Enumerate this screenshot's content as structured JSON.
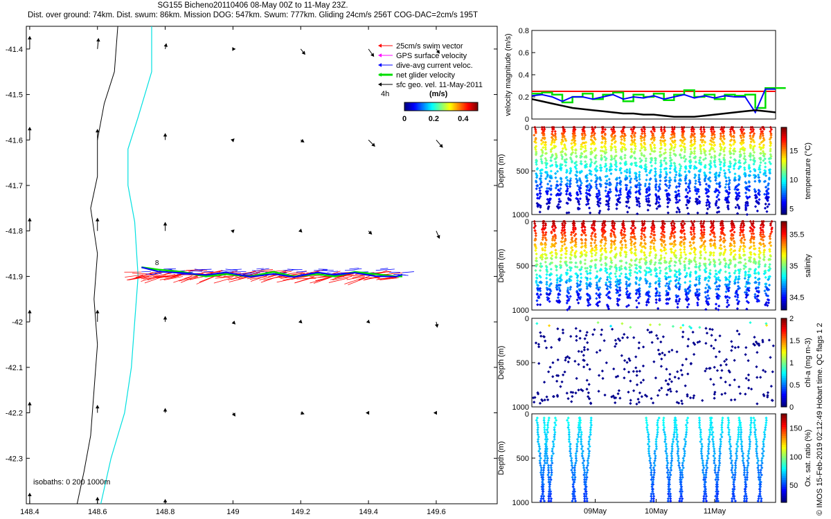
{
  "header": {
    "line1": "SG155 Bicheno20110406 08-May 00Z to 11-May 23Z.",
    "line2": "Dist. over ground: 74km. Dist. swum: 86km. Mission DOG: 547km. Swum: 777km. Gliding 24cm/s 256T COG-DAC=2cm/s 195T"
  },
  "credit": "© IMOS 15-Feb-2019 02:12:49 Hobart time. QC flags 1  2",
  "chart_data": [
    {
      "type": "map",
      "x_ticks": [
        "148.4",
        "148.6",
        "148.8",
        "149",
        "149.2",
        "149.4",
        "149.6"
      ],
      "y_ticks": [
        "-41.4",
        "-41.5",
        "-41.6",
        "-41.7",
        "-41.8",
        "-41.9",
        "-42",
        "-42.1",
        "-42.2",
        "-42.3"
      ],
      "xlim": [
        148.39,
        149.78
      ],
      "ylim": [
        -42.4,
        -41.35
      ],
      "legend": [
        {
          "label": "25cm/s swim vector",
          "color": "#ff0000"
        },
        {
          "label": "GPS surface velocity",
          "color": "#ff00ff"
        },
        {
          "label": "dive-avg current veloc.",
          "color": "#0000ff"
        },
        {
          "label": "net glider velocity",
          "color": "#00dd00"
        },
        {
          "label": "sfc geo. vel. 11-May-2011",
          "color": "#000000"
        }
      ],
      "scale_label": "4h",
      "colorbar": {
        "label": "(m/s)",
        "ticks": [
          "0",
          "0.2",
          "0.4"
        ],
        "range": [
          0,
          0.5
        ]
      },
      "isobath_label": "isobaths: 0   200  1000m",
      "track_label": "8",
      "track": {
        "lon": [
          148.73,
          148.78,
          148.85,
          148.92,
          148.98,
          149.05,
          149.12,
          149.18,
          149.25,
          149.3,
          149.36,
          149.42,
          149.48,
          149.5
        ],
        "lat": [
          -41.88,
          -41.885,
          -41.89,
          -41.9,
          -41.895,
          -41.9,
          -41.89,
          -41.9,
          -41.895,
          -41.9,
          -41.89,
          -41.895,
          -41.9,
          -41.9
        ]
      },
      "currents": [
        {
          "lon": 148.4,
          "lat": -41.4,
          "u": 0.0,
          "v": 0.12
        },
        {
          "lon": 148.6,
          "lat": -41.4,
          "u": 0.01,
          "v": 0.1
        },
        {
          "lon": 148.8,
          "lat": -41.4,
          "u": 0.01,
          "v": 0.05
        },
        {
          "lon": 149.0,
          "lat": -41.4,
          "u": 0.02,
          "v": 0.0
        },
        {
          "lon": 149.2,
          "lat": -41.4,
          "u": 0.04,
          "v": -0.05
        },
        {
          "lon": 149.4,
          "lat": -41.4,
          "u": 0.05,
          "v": -0.07
        },
        {
          "lon": 149.6,
          "lat": -41.4,
          "u": 0.03,
          "v": -0.04
        },
        {
          "lon": 148.4,
          "lat": -41.6,
          "u": 0.0,
          "v": 0.12
        },
        {
          "lon": 148.6,
          "lat": -41.6,
          "u": 0.0,
          "v": 0.1
        },
        {
          "lon": 148.8,
          "lat": -41.6,
          "u": 0.0,
          "v": 0.06
        },
        {
          "lon": 149.0,
          "lat": -41.6,
          "u": 0.01,
          "v": 0.01
        },
        {
          "lon": 149.2,
          "lat": -41.6,
          "u": 0.03,
          "v": -0.02
        },
        {
          "lon": 149.4,
          "lat": -41.6,
          "u": 0.06,
          "v": -0.06
        },
        {
          "lon": 149.6,
          "lat": -41.6,
          "u": 0.06,
          "v": -0.07
        },
        {
          "lon": 148.4,
          "lat": -41.8,
          "u": 0.0,
          "v": 0.12
        },
        {
          "lon": 148.6,
          "lat": -41.8,
          "u": 0.0,
          "v": 0.12
        },
        {
          "lon": 148.8,
          "lat": -41.8,
          "u": 0.0,
          "v": 0.08
        },
        {
          "lon": 149.0,
          "lat": -41.8,
          "u": 0.01,
          "v": 0.01
        },
        {
          "lon": 149.2,
          "lat": -41.8,
          "u": 0.01,
          "v": -0.01
        },
        {
          "lon": 149.4,
          "lat": -41.8,
          "u": 0.03,
          "v": -0.03
        },
        {
          "lon": 149.6,
          "lat": -41.8,
          "u": 0.03,
          "v": -0.07
        },
        {
          "lon": 148.4,
          "lat": -42.0,
          "u": 0.0,
          "v": 0.11
        },
        {
          "lon": 148.6,
          "lat": -42.0,
          "u": 0.0,
          "v": 0.11
        },
        {
          "lon": 148.8,
          "lat": -42.0,
          "u": 0.0,
          "v": 0.05
        },
        {
          "lon": 149.0,
          "lat": -42.0,
          "u": 0.02,
          "v": -0.02
        },
        {
          "lon": 149.2,
          "lat": -42.0,
          "u": 0.01,
          "v": -0.01
        },
        {
          "lon": 149.4,
          "lat": -42.0,
          "u": 0.01,
          "v": -0.01
        },
        {
          "lon": 149.6,
          "lat": -42.0,
          "u": 0.01,
          "v": -0.05
        },
        {
          "lon": 148.4,
          "lat": -42.2,
          "u": 0.0,
          "v": 0.1
        },
        {
          "lon": 148.6,
          "lat": -42.2,
          "u": 0.0,
          "v": 0.07
        },
        {
          "lon": 148.8,
          "lat": -42.2,
          "u": 0.0,
          "v": 0.04
        },
        {
          "lon": 149.0,
          "lat": -42.2,
          "u": 0.02,
          "v": -0.03
        },
        {
          "lon": 149.2,
          "lat": -42.2,
          "u": 0.03,
          "v": -0.01
        },
        {
          "lon": 149.4,
          "lat": -42.2,
          "u": -0.02,
          "v": 0.0
        },
        {
          "lon": 149.6,
          "lat": -42.2,
          "u": -0.02,
          "v": 0.0
        },
        {
          "lon": 148.4,
          "lat": -42.4,
          "u": 0.0,
          "v": 0.1
        },
        {
          "lon": 148.6,
          "lat": -42.4,
          "u": 0.0,
          "v": 0.06
        },
        {
          "lon": 148.8,
          "lat": -42.4,
          "u": 0.0,
          "v": 0.04
        }
      ]
    },
    {
      "type": "line",
      "ylabel": "velocity magnitude (m/s)",
      "y_ticks": [
        "0",
        "0.2",
        "0.4",
        "0.6",
        "0.8"
      ],
      "ylim": [
        0,
        0.8
      ],
      "series": [
        {
          "color": "#ff0000",
          "values": [
            0.25,
            0.25,
            0.25,
            0.25,
            0.25,
            0.25,
            0.25,
            0.25,
            0.25,
            0.25,
            0.25,
            0.25,
            0.25,
            0.25,
            0.25,
            0.25,
            0.25,
            0.25,
            0.25,
            0.25,
            0.25,
            0.25,
            0.25,
            0.25,
            0.25
          ]
        },
        {
          "color": "#00dd00",
          "values": [
            0.23,
            0.24,
            0.22,
            0.15,
            0.2,
            0.23,
            0.18,
            0.22,
            0.24,
            0.16,
            0.22,
            0.2,
            0.23,
            0.17,
            0.22,
            0.26,
            0.2,
            0.22,
            0.18,
            0.22,
            0.21,
            0.22,
            0.1,
            0.28,
            0.28
          ]
        },
        {
          "color": "#0000ff",
          "values": [
            0.21,
            0.22,
            0.2,
            0.16,
            0.2,
            0.2,
            0.18,
            0.2,
            0.22,
            0.18,
            0.2,
            0.19,
            0.21,
            0.18,
            0.2,
            0.22,
            0.19,
            0.21,
            0.19,
            0.21,
            0.2,
            0.2,
            0.06,
            0.27,
            0.27
          ]
        },
        {
          "color": "#000000",
          "values": [
            0.18,
            0.16,
            0.14,
            0.12,
            0.1,
            0.09,
            0.08,
            0.07,
            0.06,
            0.05,
            0.05,
            0.04,
            0.04,
            0.03,
            0.02,
            0.02,
            0.02,
            0.03,
            0.04,
            0.05,
            0.06,
            0.07,
            0.08,
            0.07,
            0.06
          ]
        }
      ]
    },
    {
      "type": "scatter",
      "ylabel": "Depth (m)",
      "y_ticks": [
        "0",
        "500",
        "1000"
      ],
      "ylim": [
        0,
        1000
      ],
      "colorbar": {
        "label": "temperature (°C)",
        "ticks": [
          "5",
          "10",
          "15"
        ],
        "range": [
          4,
          19
        ]
      },
      "profiles": 24
    },
    {
      "type": "scatter",
      "ylabel": "Depth (m)",
      "y_ticks": [
        "0",
        "500",
        "1000"
      ],
      "ylim": [
        0,
        1000
      ],
      "colorbar": {
        "label": "salinity",
        "ticks": [
          "34.5",
          "35",
          "35.5"
        ],
        "range": [
          34.3,
          35.7
        ]
      },
      "profiles": 24
    },
    {
      "type": "scatter",
      "ylabel": "Depth (m)",
      "y_ticks": [
        "0",
        "500",
        "1000"
      ],
      "ylim": [
        0,
        1000
      ],
      "colorbar": {
        "label": "chl-a (mg m-3)",
        "ticks": [
          "0",
          "0.5",
          "1",
          "1.5",
          "2"
        ],
        "range": [
          0,
          2
        ]
      }
    },
    {
      "type": "scatter",
      "ylabel": "Depth (m)",
      "y_ticks": [
        "0",
        "500",
        "1000"
      ],
      "ylim": [
        0,
        1000
      ],
      "colorbar": {
        "label": "Ox. sat. ratio (%)",
        "ticks": [
          "50",
          "100",
          "150"
        ],
        "range": [
          20,
          175
        ]
      },
      "profiles": 13,
      "x_ticks": [
        "09May",
        "10May",
        "11May"
      ]
    }
  ]
}
